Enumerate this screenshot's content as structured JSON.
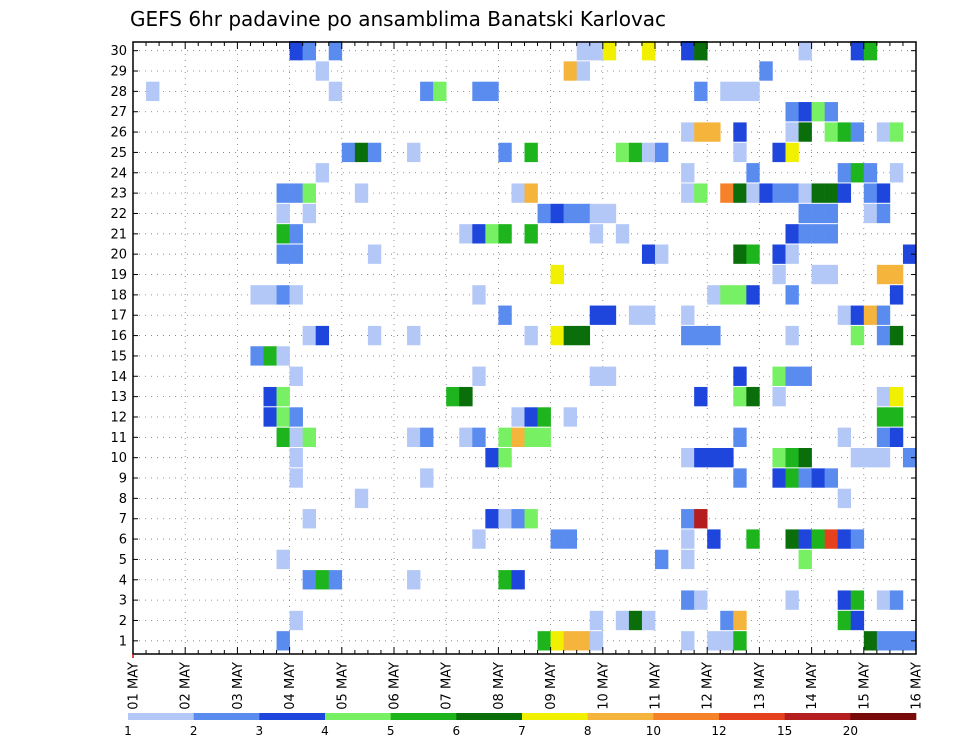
{
  "chart_data": {
    "type": "heatmap",
    "title": "GEFS 6hr padavine po ansamblima Banatski Karlovac",
    "xlabel": "",
    "ylabel": "",
    "y_ticks": [
      "1",
      "2",
      "3",
      "4",
      "5",
      "6",
      "7",
      "8",
      "9",
      "10",
      "11",
      "12",
      "13",
      "14",
      "15",
      "16",
      "17",
      "18",
      "19",
      "20",
      "21",
      "22",
      "23",
      "24",
      "25",
      "26",
      "27",
      "28",
      "29",
      "30"
    ],
    "x_ticks": [
      "01 MAY",
      "02 MAY",
      "03 MAY",
      "04 MAY",
      "05 MAY",
      "06 MAY",
      "07 MAY",
      "08 MAY",
      "09 MAY",
      "10 MAY",
      "11 MAY",
      "12 MAY",
      "13 MAY",
      "14 MAY",
      "15 MAY",
      "16 MAY"
    ],
    "x_steps_per_day": 4,
    "n_members": 30,
    "grid": true,
    "legend_placement": "bottom",
    "levels": [
      "1",
      "2",
      "3",
      "4",
      "5",
      "6",
      "7",
      "8",
      "10",
      "12",
      "15",
      "20"
    ],
    "colors": [
      "#b4c8f8",
      "#5a8cf0",
      "#1e46dc",
      "#78f064",
      "#1eb41e",
      "#0a6e0a",
      "#f0f000",
      "#f5b43c",
      "#f58228",
      "#e6411e",
      "#b41e1e",
      "#780a0a"
    ],
    "cells": [
      [
        30,
        12,
        2
      ],
      [
        30,
        13,
        1
      ],
      [
        30,
        15,
        1
      ],
      [
        30,
        34,
        0
      ],
      [
        30,
        35,
        0
      ],
      [
        30,
        36,
        6
      ],
      [
        30,
        39,
        6
      ],
      [
        30,
        42,
        2
      ],
      [
        30,
        43,
        5
      ],
      [
        30,
        51,
        0
      ],
      [
        30,
        55,
        2
      ],
      [
        30,
        56,
        4
      ],
      [
        29,
        14,
        0
      ],
      [
        29,
        33,
        7
      ],
      [
        29,
        34,
        0
      ],
      [
        29,
        48,
        1
      ],
      [
        28,
        1,
        0
      ],
      [
        28,
        15,
        0
      ],
      [
        28,
        22,
        1
      ],
      [
        28,
        23,
        3
      ],
      [
        28,
        26,
        1
      ],
      [
        28,
        27,
        1
      ],
      [
        28,
        43,
        1
      ],
      [
        28,
        45,
        0
      ],
      [
        28,
        46,
        0
      ],
      [
        28,
        47,
        0
      ],
      [
        27,
        50,
        1
      ],
      [
        27,
        51,
        2
      ],
      [
        27,
        52,
        3
      ],
      [
        27,
        53,
        1
      ],
      [
        26,
        42,
        0
      ],
      [
        26,
        43,
        7
      ],
      [
        26,
        44,
        7
      ],
      [
        26,
        46,
        2
      ],
      [
        26,
        50,
        0
      ],
      [
        26,
        51,
        5
      ],
      [
        26,
        53,
        3
      ],
      [
        26,
        54,
        4
      ],
      [
        26,
        55,
        1
      ],
      [
        26,
        57,
        0
      ],
      [
        26,
        58,
        3
      ],
      [
        25,
        16,
        1
      ],
      [
        25,
        17,
        5
      ],
      [
        25,
        18,
        1
      ],
      [
        25,
        21,
        0
      ],
      [
        25,
        28,
        1
      ],
      [
        25,
        30,
        4
      ],
      [
        25,
        37,
        3
      ],
      [
        25,
        38,
        4
      ],
      [
        25,
        39,
        0
      ],
      [
        25,
        40,
        1
      ],
      [
        25,
        46,
        0
      ],
      [
        25,
        49,
        2
      ],
      [
        25,
        50,
        6
      ],
      [
        24,
        14,
        0
      ],
      [
        24,
        42,
        0
      ],
      [
        24,
        47,
        1
      ],
      [
        24,
        54,
        1
      ],
      [
        24,
        55,
        4
      ],
      [
        24,
        56,
        1
      ],
      [
        24,
        58,
        0
      ],
      [
        23,
        11,
        1
      ],
      [
        23,
        12,
        1
      ],
      [
        23,
        13,
        3
      ],
      [
        23,
        17,
        0
      ],
      [
        23,
        29,
        0
      ],
      [
        23,
        30,
        7
      ],
      [
        23,
        42,
        0
      ],
      [
        23,
        43,
        3
      ],
      [
        23,
        45,
        8
      ],
      [
        23,
        46,
        5
      ],
      [
        23,
        47,
        0
      ],
      [
        23,
        48,
        2
      ],
      [
        23,
        49,
        1
      ],
      [
        23,
        50,
        1
      ],
      [
        23,
        51,
        0
      ],
      [
        23,
        52,
        5
      ],
      [
        23,
        53,
        5
      ],
      [
        23,
        54,
        2
      ],
      [
        23,
        56,
        1
      ],
      [
        23,
        57,
        2
      ],
      [
        22,
        11,
        0
      ],
      [
        22,
        13,
        0
      ],
      [
        22,
        31,
        1
      ],
      [
        22,
        32,
        2
      ],
      [
        22,
        33,
        1
      ],
      [
        22,
        34,
        1
      ],
      [
        22,
        35,
        0
      ],
      [
        22,
        36,
        0
      ],
      [
        22,
        51,
        1
      ],
      [
        22,
        52,
        1
      ],
      [
        22,
        53,
        1
      ],
      [
        22,
        56,
        0
      ],
      [
        22,
        57,
        1
      ],
      [
        21,
        11,
        4
      ],
      [
        21,
        12,
        1
      ],
      [
        21,
        25,
        0
      ],
      [
        21,
        26,
        2
      ],
      [
        21,
        27,
        3
      ],
      [
        21,
        28,
        4
      ],
      [
        21,
        30,
        4
      ],
      [
        21,
        35,
        0
      ],
      [
        21,
        37,
        0
      ],
      [
        21,
        50,
        2
      ],
      [
        21,
        51,
        1
      ],
      [
        21,
        52,
        1
      ],
      [
        21,
        53,
        1
      ],
      [
        20,
        11,
        1
      ],
      [
        20,
        12,
        1
      ],
      [
        20,
        18,
        0
      ],
      [
        20,
        39,
        2
      ],
      [
        20,
        40,
        0
      ],
      [
        20,
        46,
        5
      ],
      [
        20,
        47,
        4
      ],
      [
        20,
        49,
        2
      ],
      [
        20,
        50,
        0
      ],
      [
        20,
        59,
        2
      ],
      [
        19,
        32,
        6
      ],
      [
        19,
        49,
        0
      ],
      [
        19,
        52,
        0
      ],
      [
        19,
        53,
        0
      ],
      [
        19,
        57,
        7
      ],
      [
        19,
        58,
        7
      ],
      [
        18,
        9,
        0
      ],
      [
        18,
        10,
        0
      ],
      [
        18,
        11,
        1
      ],
      [
        18,
        12,
        0
      ],
      [
        18,
        26,
        0
      ],
      [
        18,
        44,
        0
      ],
      [
        18,
        45,
        3
      ],
      [
        18,
        46,
        3
      ],
      [
        18,
        47,
        2
      ],
      [
        18,
        50,
        1
      ],
      [
        18,
        58,
        2
      ],
      [
        17,
        28,
        1
      ],
      [
        17,
        35,
        2
      ],
      [
        17,
        36,
        2
      ],
      [
        17,
        38,
        0
      ],
      [
        17,
        39,
        0
      ],
      [
        17,
        42,
        0
      ],
      [
        17,
        54,
        0
      ],
      [
        17,
        55,
        2
      ],
      [
        17,
        56,
        7
      ],
      [
        17,
        57,
        1
      ],
      [
        16,
        13,
        0
      ],
      [
        16,
        14,
        2
      ],
      [
        16,
        18,
        0
      ],
      [
        16,
        21,
        0
      ],
      [
        16,
        30,
        0
      ],
      [
        16,
        32,
        6
      ],
      [
        16,
        33,
        5
      ],
      [
        16,
        34,
        5
      ],
      [
        16,
        42,
        1
      ],
      [
        16,
        43,
        1
      ],
      [
        16,
        44,
        1
      ],
      [
        16,
        50,
        0
      ],
      [
        16,
        55,
        3
      ],
      [
        16,
        57,
        1
      ],
      [
        16,
        58,
        5
      ],
      [
        15,
        9,
        1
      ],
      [
        15,
        10,
        4
      ],
      [
        15,
        11,
        0
      ],
      [
        14,
        12,
        0
      ],
      [
        14,
        26,
        0
      ],
      [
        14,
        35,
        0
      ],
      [
        14,
        36,
        0
      ],
      [
        14,
        46,
        2
      ],
      [
        14,
        49,
        3
      ],
      [
        14,
        50,
        1
      ],
      [
        14,
        51,
        1
      ],
      [
        13,
        10,
        2
      ],
      [
        13,
        11,
        3
      ],
      [
        13,
        24,
        4
      ],
      [
        13,
        25,
        5
      ],
      [
        13,
        43,
        2
      ],
      [
        13,
        46,
        3
      ],
      [
        13,
        47,
        5
      ],
      [
        13,
        49,
        0
      ],
      [
        13,
        57,
        0
      ],
      [
        13,
        58,
        6
      ],
      [
        12,
        10,
        2
      ],
      [
        12,
        11,
        3
      ],
      [
        12,
        12,
        1
      ],
      [
        12,
        29,
        0
      ],
      [
        12,
        30,
        2
      ],
      [
        12,
        31,
        4
      ],
      [
        12,
        33,
        0
      ],
      [
        12,
        57,
        4
      ],
      [
        12,
        58,
        4
      ],
      [
        11,
        11,
        4
      ],
      [
        11,
        12,
        0
      ],
      [
        11,
        13,
        3
      ],
      [
        11,
        21,
        0
      ],
      [
        11,
        22,
        1
      ],
      [
        11,
        25,
        0
      ],
      [
        11,
        26,
        1
      ],
      [
        11,
        28,
        3
      ],
      [
        11,
        29,
        7
      ],
      [
        11,
        30,
        3
      ],
      [
        11,
        31,
        3
      ],
      [
        11,
        46,
        1
      ],
      [
        11,
        54,
        0
      ],
      [
        11,
        57,
        1
      ],
      [
        11,
        58,
        2
      ],
      [
        10,
        12,
        0
      ],
      [
        10,
        27,
        2
      ],
      [
        10,
        28,
        3
      ],
      [
        10,
        42,
        0
      ],
      [
        10,
        43,
        2
      ],
      [
        10,
        44,
        2
      ],
      [
        10,
        45,
        2
      ],
      [
        10,
        49,
        3
      ],
      [
        10,
        50,
        4
      ],
      [
        10,
        51,
        5
      ],
      [
        10,
        55,
        0
      ],
      [
        10,
        56,
        0
      ],
      [
        10,
        57,
        0
      ],
      [
        10,
        59,
        1
      ],
      [
        9,
        12,
        0
      ],
      [
        9,
        22,
        0
      ],
      [
        9,
        46,
        1
      ],
      [
        9,
        49,
        2
      ],
      [
        9,
        50,
        4
      ],
      [
        9,
        51,
        1
      ],
      [
        9,
        52,
        2
      ],
      [
        9,
        53,
        1
      ],
      [
        8,
        17,
        0
      ],
      [
        8,
        54,
        0
      ],
      [
        7,
        13,
        0
      ],
      [
        7,
        27,
        2
      ],
      [
        7,
        28,
        0
      ],
      [
        7,
        29,
        1
      ],
      [
        7,
        30,
        3
      ],
      [
        7,
        42,
        1
      ],
      [
        7,
        43,
        10
      ],
      [
        6,
        26,
        0
      ],
      [
        6,
        32,
        1
      ],
      [
        6,
        33,
        1
      ],
      [
        6,
        42,
        0
      ],
      [
        6,
        44,
        2
      ],
      [
        6,
        47,
        4
      ],
      [
        6,
        50,
        5
      ],
      [
        6,
        51,
        2
      ],
      [
        6,
        52,
        4
      ],
      [
        6,
        53,
        9
      ],
      [
        6,
        54,
        2
      ],
      [
        6,
        55,
        1
      ],
      [
        5,
        11,
        0
      ],
      [
        5,
        40,
        1
      ],
      [
        5,
        42,
        0
      ],
      [
        5,
        51,
        3
      ],
      [
        4,
        13,
        1
      ],
      [
        4,
        14,
        4
      ],
      [
        4,
        15,
        1
      ],
      [
        4,
        21,
        0
      ],
      [
        4,
        28,
        4
      ],
      [
        4,
        29,
        2
      ],
      [
        3,
        42,
        1
      ],
      [
        3,
        43,
        0
      ],
      [
        3,
        50,
        0
      ],
      [
        3,
        54,
        2
      ],
      [
        3,
        55,
        4
      ],
      [
        3,
        57,
        0
      ],
      [
        3,
        58,
        1
      ],
      [
        2,
        12,
        0
      ],
      [
        2,
        35,
        0
      ],
      [
        2,
        37,
        0
      ],
      [
        2,
        38,
        5
      ],
      [
        2,
        39,
        0
      ],
      [
        2,
        45,
        1
      ],
      [
        2,
        46,
        7
      ],
      [
        2,
        54,
        4
      ],
      [
        2,
        55,
        2
      ],
      [
        1,
        11,
        1
      ],
      [
        1,
        31,
        4
      ],
      [
        1,
        32,
        6
      ],
      [
        1,
        33,
        7
      ],
      [
        1,
        34,
        7
      ],
      [
        1,
        35,
        0
      ],
      [
        1,
        42,
        0
      ],
      [
        1,
        44,
        0
      ],
      [
        1,
        45,
        0
      ],
      [
        1,
        46,
        4
      ],
      [
        1,
        56,
        5
      ],
      [
        1,
        57,
        1
      ],
      [
        1,
        58,
        1
      ],
      [
        1,
        59,
        1
      ]
    ]
  }
}
